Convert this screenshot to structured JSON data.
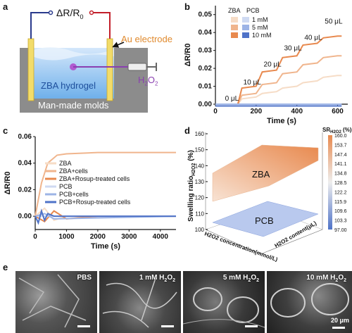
{
  "panels": {
    "a": "a",
    "b": "b",
    "c": "c",
    "d": "d",
    "e": "e"
  },
  "panel_a": {
    "resistance_label": "ΔR/R",
    "resistance_sub": "0",
    "electrode_label": "Au electrode",
    "hydrogel_label": "ZBA hydrogel",
    "mold_label": "Man-made molds",
    "h2o2_label": "H",
    "h2o2_sub1": "2",
    "h2o2_mid": "O",
    "h2o2_sub2": "2"
  },
  "chart_data": [
    {
      "id": "b",
      "type": "line",
      "xlabel": "Time (s)",
      "ylabel": "ΔR/R0",
      "xlim": [
        0,
        650
      ],
      "ylim": [
        0,
        0.055
      ],
      "x_ticks": [
        "0",
        "200",
        "400",
        "600"
      ],
      "y_ticks": [
        "0.00",
        "0.01",
        "0.02",
        "0.03",
        "0.04",
        "0.05"
      ],
      "legend_headers": [
        "ZBA",
        "PCB"
      ],
      "legend_labels": [
        "1 mM",
        "5 mM",
        "10 mM"
      ],
      "annotations": [
        "0 μL",
        "10 μL",
        "20 μL",
        "30 μL",
        "40 μL",
        "50 μL"
      ],
      "series": [
        {
          "name": "ZBA 1 mM",
          "color": "#f6dcc6",
          "x": [
            0,
            110,
            130,
            200,
            230,
            300,
            330,
            400,
            430,
            500,
            530,
            600,
            620
          ],
          "y": [
            0.0,
            0.0,
            0.003,
            0.004,
            0.006,
            0.007,
            0.009,
            0.01,
            0.012,
            0.013,
            0.015,
            0.016,
            0.016
          ]
        },
        {
          "name": "ZBA 5 mM",
          "color": "#f0b58d",
          "x": [
            0,
            110,
            130,
            200,
            230,
            300,
            330,
            400,
            430,
            500,
            530,
            600,
            620
          ],
          "y": [
            0.0,
            0.0,
            0.005,
            0.006,
            0.011,
            0.012,
            0.017,
            0.018,
            0.022,
            0.023,
            0.026,
            0.027,
            0.027
          ]
        },
        {
          "name": "ZBA 10 mM",
          "color": "#e8894e",
          "x": [
            0,
            110,
            130,
            200,
            230,
            300,
            330,
            400,
            430,
            500,
            530,
            600,
            620
          ],
          "y": [
            0.0,
            0.0,
            0.009,
            0.01,
            0.018,
            0.019,
            0.026,
            0.027,
            0.033,
            0.034,
            0.037,
            0.038,
            0.038
          ]
        },
        {
          "name": "PCB 1 mM",
          "color": "#cfdaf2",
          "x": [
            0,
            620
          ],
          "y": [
            0.0,
            0.0
          ]
        },
        {
          "name": "PCB 5 mM",
          "color": "#9db4e6",
          "x": [
            0,
            620
          ],
          "y": [
            0.0,
            0.0
          ]
        },
        {
          "name": "PCB 10 mM",
          "color": "#4f73c8",
          "x": [
            0,
            620
          ],
          "y": [
            -0.001,
            -0.001
          ]
        }
      ]
    },
    {
      "id": "c",
      "type": "line",
      "xlabel": "Time (s)",
      "ylabel": "ΔR/R0",
      "xlim": [
        0,
        4500
      ],
      "ylim": [
        -0.01,
        0.06
      ],
      "x_ticks": [
        "0",
        "1000",
        "2000",
        "3000",
        "4000"
      ],
      "y_ticks": [
        "0.00",
        "0.02",
        "0.04",
        "0.06"
      ],
      "series": [
        {
          "name": "ZBA",
          "color": "#f6dcc6",
          "x": [
            0,
            300,
            600,
            1000,
            2000,
            3000,
            4500
          ],
          "y": [
            0.0,
            0.006,
            -0.003,
            0.0,
            0.0,
            0.0,
            0.0
          ]
        },
        {
          "name": "ZBA+cells",
          "color": "#f0b58d",
          "x": [
            0,
            200,
            400,
            700,
            1000,
            2000,
            3000,
            4500
          ],
          "y": [
            0.0,
            0.025,
            0.04,
            0.046,
            0.047,
            0.048,
            0.048,
            0.048
          ]
        },
        {
          "name": "ZBA+Rosup-treated cells",
          "color": "#e8894e",
          "x": [
            0,
            300,
            600,
            1000,
            2000,
            4500
          ],
          "y": [
            0.0,
            -0.004,
            0.004,
            -0.002,
            0.0,
            0.0
          ]
        },
        {
          "name": "PCB",
          "color": "#cfdaf2",
          "x": [
            0,
            4500
          ],
          "y": [
            0.0,
            0.0
          ]
        },
        {
          "name": "PCB+cells",
          "color": "#9db4e6",
          "x": [
            0,
            300,
            600,
            4500
          ],
          "y": [
            0.0,
            0.002,
            -0.002,
            0.0
          ]
        },
        {
          "name": "PCB+Rosup-treated cells",
          "color": "#4f73c8",
          "x": [
            0,
            100,
            200,
            300,
            400,
            600,
            4500
          ],
          "y": [
            0.0,
            -0.005,
            0.004,
            -0.003,
            0.002,
            0.0,
            0.0
          ]
        }
      ]
    },
    {
      "id": "d",
      "type": "surface",
      "zlabel": "Swelling ratio",
      "zlabel_sub": "H2O2",
      "zlabel_unit": " (%)",
      "xlabel": "H2O2 concentration(mmol/L)",
      "ylabel": "H2O2 content(μL)",
      "z_ticks": [
        "100",
        "110",
        "120",
        "130",
        "140",
        "150",
        "160"
      ],
      "surfaces": [
        {
          "name": "ZBA",
          "color_low": "#f8e3d4",
          "color_high": "#e8894e"
        },
        {
          "name": "PCB",
          "color_low": "#b9c9ee",
          "color_high": "#9db4e6"
        }
      ],
      "colorbar_title": "SR",
      "colorbar_sub": "H2O2",
      "colorbar_unit": " (%)",
      "colorbar_ticks": [
        "160.0",
        "153.7",
        "147.4",
        "141.1",
        "134.8",
        "128.5",
        "122.2",
        "115.9",
        "109.6",
        "103.3",
        "97.00"
      ]
    }
  ],
  "panel_e": [
    {
      "label": "PBS",
      "pre": "",
      "sub": "",
      "post": ""
    },
    {
      "label": "",
      "pre": "1 mM H",
      "sub": "2",
      "post": "O",
      "sub2": "2"
    },
    {
      "label": "",
      "pre": "5 mM H",
      "sub": "2",
      "post": "O",
      "sub2": "2"
    },
    {
      "label": "",
      "pre": "10 mM H",
      "sub": "2",
      "post": "O",
      "sub2": "2"
    }
  ],
  "scale_label": "20 μm"
}
